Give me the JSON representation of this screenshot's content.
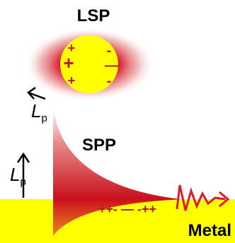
{
  "labels": {
    "lsp": "LSP",
    "spp": "SPP",
    "metal": "Metal"
  },
  "lp_top": {
    "symbol": "L",
    "subscript": "p"
  },
  "lp_side": {
    "symbol": "L",
    "subscript": "p"
  },
  "lsp_charges": {
    "positive": [
      "+",
      "+",
      "+"
    ],
    "negative": [
      "-",
      "—",
      "-"
    ]
  },
  "spp_charges": "++- — -++"
}
